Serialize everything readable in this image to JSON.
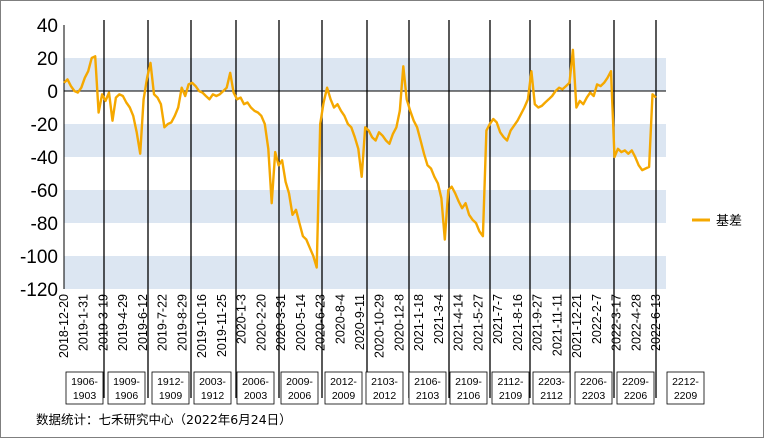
{
  "chart_data": {
    "type": "line",
    "title": "",
    "xlabel": "",
    "ylabel": "",
    "ylim": [
      -120,
      40
    ],
    "yticks": [
      40,
      20,
      0,
      -20,
      -40,
      -60,
      -80,
      -100,
      -120
    ],
    "grid": "alternating horizontal bands",
    "legend_position": "right",
    "series": [
      {
        "name": "基差",
        "color": "#F5A800",
        "values": [
          5,
          7,
          3,
          0,
          -1,
          2,
          8,
          12,
          20,
          21,
          -13,
          -2,
          -6,
          -1,
          -18,
          -4,
          -2,
          -3,
          -7,
          -10,
          -15,
          -25,
          -38,
          -5,
          8,
          17,
          -2,
          -4,
          -8,
          -22,
          -20,
          -19,
          -15,
          -10,
          2,
          -3,
          4,
          5,
          3,
          0,
          -1,
          -3,
          -5,
          -2,
          -3,
          -2,
          0,
          2,
          11,
          -1,
          -5,
          -4,
          -8,
          -7,
          -10,
          -12,
          -13,
          -15,
          -20,
          -35,
          -68,
          -37,
          -45,
          -42,
          -55,
          -62,
          -75,
          -72,
          -80,
          -88,
          -90,
          -95,
          -100,
          -107,
          -20,
          -7,
          2,
          -5,
          -10,
          -8,
          -12,
          -15,
          -20,
          -22,
          -28,
          -35,
          -52,
          -22,
          -24,
          -28,
          -30,
          -25,
          -27,
          -30,
          -32,
          -26,
          -22,
          -12,
          15,
          -5,
          -12,
          -18,
          -22,
          -30,
          -38,
          -45,
          -47,
          -52,
          -56,
          -65,
          -90,
          -60,
          -58,
          -62,
          -67,
          -71,
          -68,
          -75,
          -78,
          -80,
          -85,
          -88,
          -24,
          -20,
          -17,
          -19,
          -25,
          -28,
          -30,
          -24,
          -21,
          -18,
          -14,
          -10,
          -5,
          12,
          -8,
          -10,
          -9,
          -7,
          -5,
          -3,
          0,
          2,
          1,
          3,
          5,
          25,
          -10,
          -6,
          -8,
          -4,
          -1,
          -3,
          4,
          3,
          5,
          8,
          12,
          -40,
          -35,
          -37,
          -36,
          -38,
          -36,
          -40,
          -45,
          -48,
          -47,
          -46,
          -2,
          -4
        ]
      }
    ],
    "x_ticks": [
      "2018-12-20",
      "2019-1-31",
      "2019-3-19",
      "2019-4-29",
      "2019-6-12",
      "2019-7-22",
      "2019-8-29",
      "2019-10-16",
      "2019-11-25",
      "2020-1-3",
      "2020-2-20",
      "2020-3-31",
      "2020-5-14",
      "2020-6-23",
      "2020-8-4",
      "2020-9-11",
      "2020-10-29",
      "2020-12-8",
      "2021-1-18",
      "2021-3-4",
      "2021-4-14",
      "2021-5-27",
      "2021-7-7",
      "2021-8-16",
      "2021-9-27",
      "2021-11-11",
      "2021-12-21",
      "2022-2-7",
      "2022-3-17",
      "2022-4-28",
      "2022-6-13"
    ],
    "segments": [
      "1906-1903",
      "1909-1906",
      "1912-1909",
      "2003-1912",
      "2006-2003",
      "2009-2006",
      "2012-2009",
      "2103-2012",
      "2106-2103",
      "2109-2106",
      "2112-2109",
      "2203-2112",
      "2206-2203",
      "2209-2206",
      "2212-2209"
    ]
  },
  "source": "数据统计：七禾研究中心（2022年6月24日）"
}
